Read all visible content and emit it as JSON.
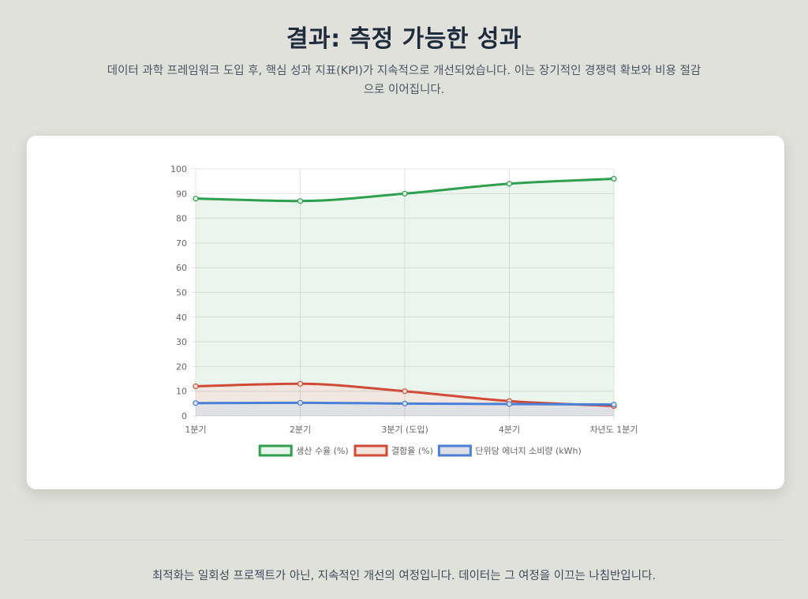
{
  "header": {
    "title": "결과: 측정 가능한 성과",
    "subtitle": "데이터 과학 프레임워크 도입 후, 핵심 성과 지표(KPI)가 지속적으로 개선되었습니다. 이는 장기적인 경쟁력 확보와 비용 절감으로 이어집니다."
  },
  "footer": {
    "text": "최적화는 일회성 프로젝트가 아닌, 지속적인 개선의 여정입니다. 데이터는 그 여정을 이끄는 나침반입니다."
  },
  "chart_data": {
    "type": "line",
    "title": "",
    "xlabel": "",
    "ylabel": "",
    "categories": [
      "1분기",
      "2분기",
      "3분기 (도입)",
      "4분기",
      "차년도 1분기"
    ],
    "ylim": [
      0,
      100
    ],
    "yticks": [
      0,
      10,
      20,
      30,
      40,
      50,
      60,
      70,
      80,
      90,
      100
    ],
    "grid": true,
    "legend_position": "bottom",
    "series": [
      {
        "name": "생산 수율 (%)",
        "values": [
          88,
          87,
          90,
          94,
          96
        ],
        "color": "#2e9e4f",
        "fill": "#e6f4ea"
      },
      {
        "name": "결함율 (%)",
        "values": [
          12,
          13,
          10,
          6,
          4
        ],
        "color": "#d04a37",
        "fill": "#f3e4dc"
      },
      {
        "name": "단위당 에너지 소비량 (kWh)",
        "values": [
          5.2,
          5.3,
          5.0,
          4.8,
          4.6
        ],
        "color": "#4a7fd8",
        "fill": "#dddfe6"
      }
    ]
  }
}
